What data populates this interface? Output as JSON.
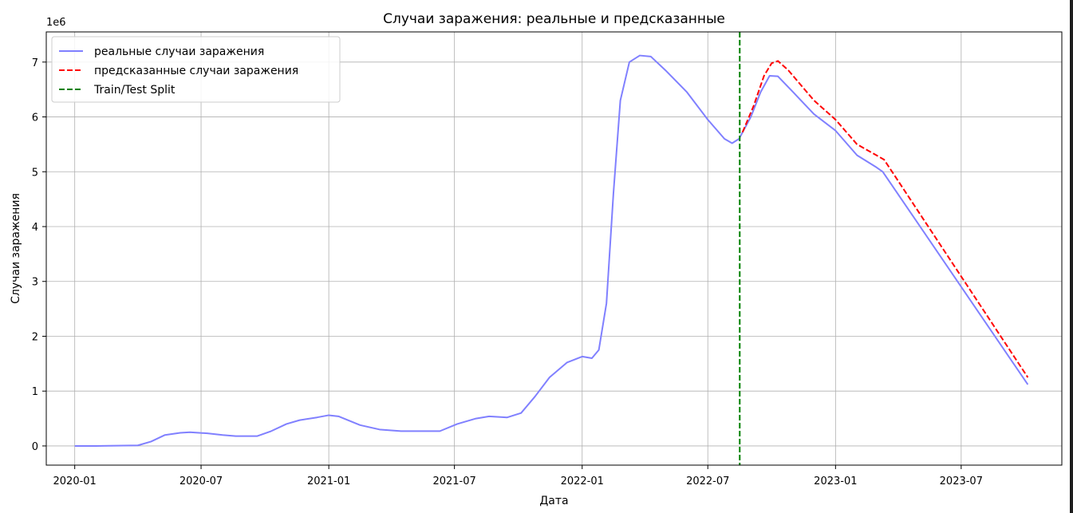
{
  "chart_data": {
    "type": "line",
    "title": "Случаи заражения: реальные и предсказанные",
    "xlabel": "Дата",
    "ylabel": "Случаи заражения",
    "y_offset_label": "1e6",
    "x_ticks": [
      "2020-01",
      "2020-07",
      "2021-01",
      "2021-07",
      "2022-01",
      "2022-07",
      "2023-01",
      "2023-07"
    ],
    "y_ticks": [
      "0",
      "1",
      "2",
      "3",
      "4",
      "5",
      "6",
      "7"
    ],
    "xlim": [
      "2019-11-21",
      "2023-11-23"
    ],
    "ylim": [
      -0.35,
      7.55
    ],
    "y_unit": 1000000,
    "grid": true,
    "legend_position": "top-left",
    "series": [
      {
        "name": "реальные случаи заражения",
        "color": "#8080ff",
        "style": "solid",
        "points": [
          [
            "2020-01-01",
            0.0
          ],
          [
            "2020-02-01",
            0.0
          ],
          [
            "2020-03-01",
            0.005
          ],
          [
            "2020-04-01",
            0.01
          ],
          [
            "2020-04-20",
            0.08
          ],
          [
            "2020-05-10",
            0.2
          ],
          [
            "2020-06-01",
            0.24
          ],
          [
            "2020-06-15",
            0.25
          ],
          [
            "2020-07-10",
            0.23
          ],
          [
            "2020-08-01",
            0.2
          ],
          [
            "2020-08-20",
            0.18
          ],
          [
            "2020-09-20",
            0.18
          ],
          [
            "2020-10-10",
            0.27
          ],
          [
            "2020-11-01",
            0.4
          ],
          [
            "2020-11-20",
            0.47
          ],
          [
            "2020-12-15",
            0.52
          ],
          [
            "2021-01-01",
            0.56
          ],
          [
            "2021-01-15",
            0.54
          ],
          [
            "2021-02-15",
            0.38
          ],
          [
            "2021-03-15",
            0.3
          ],
          [
            "2021-04-15",
            0.27
          ],
          [
            "2021-06-10",
            0.27
          ],
          [
            "2021-07-05",
            0.4
          ],
          [
            "2021-08-01",
            0.5
          ],
          [
            "2021-08-20",
            0.54
          ],
          [
            "2021-09-15",
            0.52
          ],
          [
            "2021-10-05",
            0.6
          ],
          [
            "2021-10-25",
            0.9
          ],
          [
            "2021-11-15",
            1.25
          ],
          [
            "2021-12-10",
            1.52
          ],
          [
            "2022-01-01",
            1.63
          ],
          [
            "2022-01-15",
            1.6
          ],
          [
            "2022-01-25",
            1.75
          ],
          [
            "2022-02-05",
            2.6
          ],
          [
            "2022-02-15",
            4.6
          ],
          [
            "2022-02-25",
            6.3
          ],
          [
            "2022-03-10",
            7.0
          ],
          [
            "2022-03-25",
            7.12
          ],
          [
            "2022-04-10",
            7.1
          ],
          [
            "2022-05-01",
            6.85
          ],
          [
            "2022-06-01",
            6.45
          ],
          [
            "2022-07-01",
            5.95
          ],
          [
            "2022-07-25",
            5.6
          ],
          [
            "2022-08-05",
            5.52
          ],
          [
            "2022-08-15",
            5.6
          ],
          [
            "2022-09-01",
            6.0
          ],
          [
            "2022-09-15",
            6.45
          ],
          [
            "2022-09-28",
            6.75
          ],
          [
            "2022-10-10",
            6.74
          ],
          [
            "2022-11-01",
            6.45
          ],
          [
            "2022-12-01",
            6.05
          ],
          [
            "2023-01-01",
            5.75
          ],
          [
            "2023-02-01",
            5.3
          ],
          [
            "2023-03-01",
            5.08
          ],
          [
            "2023-03-10",
            5.0
          ],
          [
            "2023-10-05",
            1.12
          ]
        ]
      },
      {
        "name": "предсказанные случаи заражения",
        "color": "#ff0000",
        "style": "dashed",
        "points": [
          [
            "2022-08-20",
            5.72
          ],
          [
            "2022-09-05",
            6.2
          ],
          [
            "2022-09-20",
            6.75
          ],
          [
            "2022-10-01",
            6.98
          ],
          [
            "2022-10-10",
            7.02
          ],
          [
            "2022-10-25",
            6.85
          ],
          [
            "2022-12-01",
            6.3
          ],
          [
            "2023-01-01",
            5.95
          ],
          [
            "2023-02-01",
            5.5
          ],
          [
            "2023-03-01",
            5.3
          ],
          [
            "2023-03-12",
            5.22
          ],
          [
            "2023-10-05",
            1.25
          ]
        ]
      }
    ],
    "vertical_line": {
      "name": "Train/Test Split",
      "color": "#008000",
      "style": "dashed",
      "x": "2022-08-16"
    }
  }
}
